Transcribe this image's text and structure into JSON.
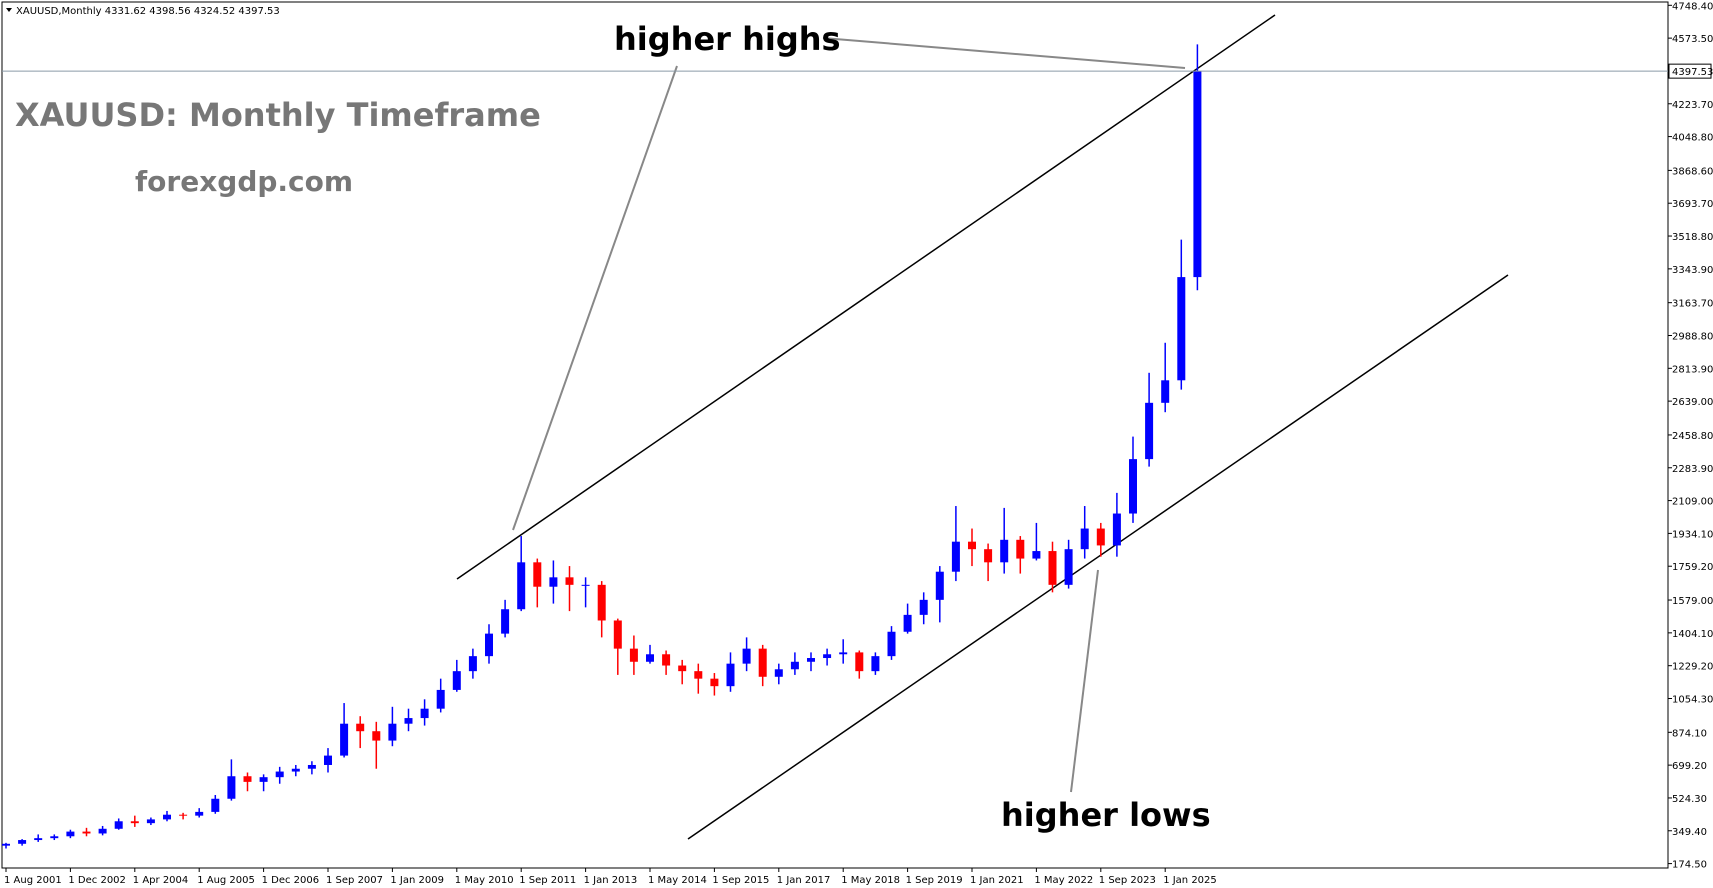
{
  "chart_data": {
    "type": "candlestick",
    "header": "XAUUSD,Monthly  4331.62 4398.56 4324.52 4397.53",
    "title": "XAUUSD: Monthly Timeframe",
    "subtitle": "forexgdp.com",
    "annotations": [
      "higher highs",
      "higher lows"
    ],
    "up_color": "#0000ff",
    "down_color": "#ff0000",
    "categories": [
      "1 Aug 2001",
      null,
      null,
      null,
      "1 Dec 2002",
      null,
      null,
      null,
      "1 Apr 2004",
      null,
      null,
      null,
      "1 Aug 2005",
      null,
      null,
      null,
      "1 Dec 2006",
      null,
      null,
      null,
      "1 Sep 2007",
      null,
      null,
      null,
      "1 Jan 2009",
      null,
      null,
      null,
      "1 May 2010",
      null,
      null,
      null,
      "1 Sep 2011",
      null,
      null,
      null,
      "1 Jan 2013",
      null,
      null,
      null,
      "1 May 2014",
      null,
      null,
      null,
      "1 Sep 2015",
      null,
      null,
      null,
      "1 Jan 2017",
      null,
      null,
      null,
      "1 May 2018",
      null,
      null,
      null,
      "1 Sep 2019",
      null,
      null,
      null,
      "1 Jan 2021",
      null,
      null,
      null,
      "1 May 2022",
      null,
      null,
      null,
      "1 Sep 2023",
      null,
      null,
      null,
      "1 Jan 2025",
      null,
      null
    ],
    "series": [
      {
        "open": [
          270,
          280,
          300,
          310,
          320,
          345,
          335,
          360,
          400,
          390,
          410,
          435,
          430,
          450,
          520,
          640,
          610,
          635,
          665,
          680,
          700,
          750,
          920,
          880,
          830,
          920,
          950,
          1000,
          1100,
          1200,
          1280,
          1400,
          1530,
          1780,
          1650,
          1700,
          1660,
          1660,
          1470,
          1320,
          1250,
          1290,
          1230,
          1200,
          1160,
          1120,
          1240,
          1320,
          1170,
          1210,
          1250,
          1270,
          1290,
          1300,
          1200,
          1280,
          1410,
          1500,
          1580,
          1730,
          1890,
          1850,
          1780,
          1900,
          1800,
          1840,
          1660,
          1850,
          1960,
          1870,
          2040,
          2330,
          2630,
          2750,
          3300
        ],
        "high": [
          285,
          305,
          330,
          330,
          355,
          365,
          375,
          415,
          430,
          420,
          455,
          445,
          470,
          540,
          730,
          660,
          650,
          690,
          700,
          720,
          790,
          1030,
          960,
          930,
          1010,
          1000,
          1050,
          1160,
          1260,
          1320,
          1450,
          1580,
          1920,
          1800,
          1790,
          1760,
          1700,
          1680,
          1480,
          1390,
          1340,
          1310,
          1260,
          1240,
          1190,
          1300,
          1380,
          1340,
          1240,
          1300,
          1300,
          1320,
          1370,
          1310,
          1300,
          1440,
          1560,
          1620,
          1760,
          2080,
          1960,
          1880,
          2070,
          1920,
          1990,
          1890,
          1900,
          2080,
          1990,
          2150,
          2450,
          2790,
          2950,
          3500,
          4540
        ],
        "low": [
          255,
          270,
          290,
          300,
          310,
          320,
          325,
          355,
          370,
          380,
          400,
          410,
          420,
          440,
          510,
          560,
          560,
          600,
          640,
          650,
          660,
          740,
          790,
          680,
          800,
          880,
          910,
          980,
          1090,
          1160,
          1240,
          1380,
          1520,
          1540,
          1560,
          1520,
          1540,
          1380,
          1180,
          1180,
          1240,
          1180,
          1130,
          1080,
          1070,
          1090,
          1200,
          1120,
          1130,
          1180,
          1200,
          1230,
          1240,
          1160,
          1180,
          1260,
          1400,
          1450,
          1460,
          1680,
          1760,
          1680,
          1720,
          1720,
          1790,
          1620,
          1640,
          1800,
          1810,
          1810,
          1990,
          2290,
          2580,
          2700,
          3230
        ],
        "close": [
          280,
          300,
          310,
          320,
          345,
          335,
          360,
          400,
          390,
          410,
          435,
          430,
          450,
          520,
          640,
          610,
          635,
          665,
          680,
          700,
          750,
          920,
          880,
          830,
          920,
          950,
          1000,
          1100,
          1200,
          1280,
          1400,
          1530,
          1780,
          1650,
          1700,
          1660,
          1660,
          1470,
          1320,
          1250,
          1290,
          1230,
          1200,
          1160,
          1120,
          1240,
          1320,
          1170,
          1210,
          1250,
          1270,
          1290,
          1300,
          1200,
          1280,
          1410,
          1500,
          1580,
          1730,
          1890,
          1850,
          1780,
          1900,
          1800,
          1840,
          1660,
          1850,
          1960,
          1870,
          2040,
          2330,
          2630,
          2750,
          3300,
          4397.53
        ]
      }
    ],
    "current_price": {
      "value": 4397.53,
      "label": "4397.53"
    },
    "ylim": [
      151,
      4766
    ],
    "yticks": [
      {
        "value": 174.5,
        "label": "174.50"
      },
      {
        "value": 349.4,
        "label": "349.40"
      },
      {
        "value": 524.3,
        "label": "524.30"
      },
      {
        "value": 699.2,
        "label": "699.20"
      },
      {
        "value": 874.1,
        "label": "874.10"
      },
      {
        "value": 1054.3,
        "label": "1054.30"
      },
      {
        "value": 1229.2,
        "label": "1229.20"
      },
      {
        "value": 1404.1,
        "label": "1404.10"
      },
      {
        "value": 1579,
        "label": "1579.00"
      },
      {
        "value": 1759.2,
        "label": "1759.20"
      },
      {
        "value": 1934.1,
        "label": "1934.10"
      },
      {
        "value": 2109,
        "label": "2109.00"
      },
      {
        "value": 2283.9,
        "label": "2283.90"
      },
      {
        "value": 2458.8,
        "label": "2458.80"
      },
      {
        "value": 2639,
        "label": "2639.00"
      },
      {
        "value": 2813.9,
        "label": "2813.90"
      },
      {
        "value": 2988.8,
        "label": "2988.80"
      },
      {
        "value": 3163.7,
        "label": "3163.70"
      },
      {
        "value": 3343.9,
        "label": "3343.90"
      },
      {
        "value": 3518.8,
        "label": "3518.80"
      },
      {
        "value": 3693.7,
        "label": "3693.70"
      },
      {
        "value": 3868.6,
        "label": "3868.60"
      },
      {
        "value": 4048.8,
        "label": "4048.80"
      },
      {
        "value": 4223.7,
        "label": "4223.70"
      },
      {
        "value": 4573.5,
        "label": "4573.50"
      },
      {
        "value": 4748.4,
        "label": "4748.40"
      }
    ]
  }
}
